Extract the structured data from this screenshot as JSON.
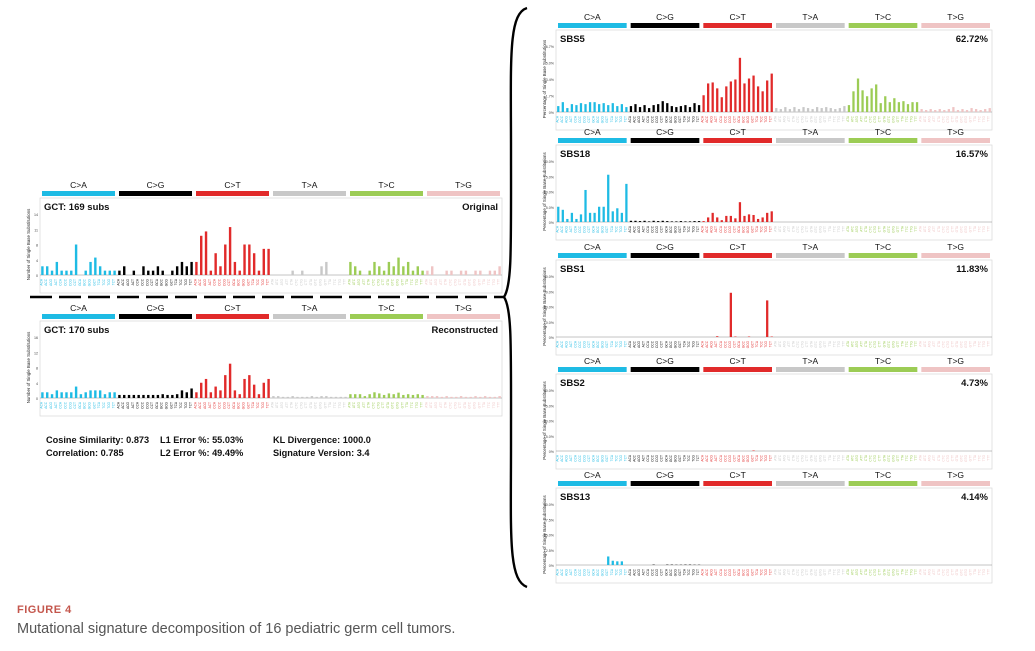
{
  "figure": {
    "label": "FIGURE 4",
    "caption": "Mutational signature decomposition of 16 pediatric germ cell tumors."
  },
  "mutation_types": [
    {
      "label": "C>A",
      "color": "#1ebbe4"
    },
    {
      "label": "C>G",
      "color": "#000000"
    },
    {
      "label": "C>T",
      "color": "#e12a2a"
    },
    {
      "label": "T>A",
      "color": "#c8c8c8"
    },
    {
      "label": "T>C",
      "color": "#9ccc55"
    },
    {
      "label": "T>G",
      "color": "#efc4c4"
    }
  ],
  "stats": [
    {
      "label": "Cosine Similarity: 0.873"
    },
    {
      "label": "Correlation: 0.785"
    },
    {
      "label": "L1 Error %: 55.03%"
    },
    {
      "label": "L2 Error %: 49.49%"
    },
    {
      "label": "KL Divergence: 1000.0"
    },
    {
      "label": "Signature Version: 3.4"
    }
  ],
  "chart_data": [
    {
      "type": "bar",
      "panel": "GCT original",
      "title": "GCT: 169 subs",
      "corner_label": "Original",
      "ylabel": "Number of Single Base Substitutions",
      "yticks": [
        "0",
        "4",
        "8",
        "11",
        "14"
      ],
      "ylim": [
        0,
        14
      ],
      "values": [
        2,
        2,
        1,
        3,
        1,
        1,
        1,
        7,
        0,
        1,
        3,
        4,
        2,
        1,
        1,
        1,
        1,
        2,
        0,
        1,
        0,
        2,
        1,
        1,
        2,
        1,
        0,
        1,
        2,
        3,
        2,
        3,
        3,
        9,
        10,
        1,
        5,
        2,
        7,
        11,
        3,
        1,
        7,
        7,
        5,
        1,
        6,
        6,
        0,
        0,
        0,
        0,
        1,
        0,
        1,
        0,
        0,
        0,
        2,
        3,
        0,
        0,
        0,
        0,
        3,
        2,
        1,
        0,
        1,
        3,
        2,
        1,
        3,
        2,
        4,
        2,
        3,
        1,
        2,
        1,
        1,
        2,
        0,
        0,
        1,
        1,
        0,
        1,
        1,
        0,
        1,
        1,
        0,
        1,
        1,
        2
      ]
    },
    {
      "type": "bar",
      "panel": "GCT reconstructed",
      "title": "GCT: 170 subs",
      "corner_label": "Reconstructed",
      "ylabel": "Number of Single Base Substitutions",
      "yticks": [
        "0",
        "4",
        "8",
        "12",
        "16"
      ],
      "ylim": [
        0,
        16
      ],
      "values": [
        1.5,
        1.5,
        1,
        2,
        1.5,
        1.5,
        1.5,
        3,
        1,
        1.5,
        2,
        2,
        2,
        1,
        1.5,
        1.5,
        0.8,
        0.8,
        0.8,
        0.8,
        0.8,
        0.8,
        0.8,
        0.8,
        0.8,
        1,
        0.8,
        0.8,
        1,
        2,
        1.5,
        2.5,
        1.5,
        4,
        5,
        1.5,
        3,
        2,
        6,
        9,
        2,
        1,
        5,
        6,
        3.5,
        1,
        4,
        5,
        0.5,
        0.5,
        0.3,
        0.3,
        0.5,
        0.3,
        0.3,
        0.3,
        0.5,
        0.3,
        0.5,
        0.5,
        0.3,
        0.3,
        0.3,
        0.3,
        1,
        1,
        1,
        0.5,
        1,
        1.5,
        1.2,
        0.8,
        1.2,
        1,
        1.4,
        0.8,
        1,
        0.8,
        1,
        0.8,
        0.5,
        0.5,
        0.5,
        0.3,
        0.5,
        0.3,
        0.3,
        0.5,
        0.3,
        0.3,
        0.5,
        0.3,
        0.5,
        0.3,
        0.3,
        0.5
      ]
    },
    {
      "type": "bar",
      "panel": "SBS5",
      "title": "SBS5",
      "corner_label": "62.72%",
      "ylabel": "Percentage of Single Base Substitutions",
      "yticks": [
        "0%",
        "1.7%",
        "3.4%",
        "5.0%",
        "6.7%"
      ],
      "ylim": [
        0,
        6.7
      ],
      "values": [
        0.6,
        1,
        0.4,
        0.8,
        0.7,
        0.9,
        0.8,
        1,
        1,
        0.8,
        0.9,
        0.7,
        0.9,
        0.6,
        0.8,
        0.5,
        0.6,
        0.8,
        0.5,
        0.7,
        0.4,
        0.7,
        0.8,
        1.1,
        0.9,
        0.6,
        0.5,
        0.6,
        0.7,
        0.5,
        0.9,
        0.7,
        1.7,
        2.9,
        3,
        2.4,
        1.5,
        2.6,
        3.1,
        3.3,
        5.5,
        2.9,
        3.4,
        3.7,
        2.6,
        2.1,
        3.2,
        3.9,
        0.4,
        0.3,
        0.5,
        0.3,
        0.5,
        0.3,
        0.5,
        0.4,
        0.3,
        0.5,
        0.4,
        0.5,
        0.4,
        0.3,
        0.4,
        0.6,
        0.7,
        2.1,
        3.4,
        2.2,
        1.6,
        2.4,
        2.8,
        0.9,
        1.6,
        1,
        1.4,
        1,
        1.1,
        0.8,
        1,
        1,
        0.3,
        0.2,
        0.3,
        0.2,
        0.3,
        0.2,
        0.3,
        0.5,
        0.2,
        0.3,
        0.2,
        0.4,
        0.3,
        0.2,
        0.3,
        0.4
      ]
    },
    {
      "type": "bar",
      "panel": "SBS18",
      "title": "SBS18",
      "corner_label": "16.57%",
      "ylabel": "Percentage of Single Base Substitutions",
      "yticks": [
        "0%",
        "5.0%",
        "10.0%",
        "15.0%",
        "20.0%"
      ],
      "ylim": [
        0,
        20
      ],
      "values": [
        5,
        4,
        1,
        3,
        1,
        2.5,
        10.5,
        3,
        3,
        5,
        5,
        15.5,
        3.5,
        4.5,
        3,
        12.5,
        0.4,
        0.4,
        0.3,
        0.4,
        0.2,
        0.4,
        0.3,
        0.4,
        0.3,
        0.2,
        0.2,
        0.3,
        0.2,
        0.2,
        0.3,
        0.3,
        0.3,
        1.5,
        3,
        1.5,
        0.6,
        2,
        2,
        1.2,
        6.5,
        2,
        2.5,
        2.3,
        1,
        1.5,
        3,
        3.5,
        0,
        0,
        0,
        0,
        0,
        0,
        0,
        0,
        0,
        0,
        0,
        0,
        0,
        0,
        0,
        0,
        0,
        0,
        0,
        0,
        0,
        0,
        0,
        0,
        0,
        0,
        0,
        0,
        0,
        0,
        0,
        0,
        0,
        0,
        0,
        0,
        0,
        0,
        0,
        0,
        0,
        0,
        0,
        0,
        0,
        0,
        0,
        0
      ]
    },
    {
      "type": "bar",
      "panel": "SBS1",
      "title": "SBS1",
      "corner_label": "11.83%",
      "ylabel": "Percentage of Single Base Substitutions",
      "yticks": [
        "0%",
        "10.0%",
        "20.0%",
        "30.0%",
        "40.0%"
      ],
      "ylim": [
        0,
        40
      ],
      "values": [
        0,
        0,
        0,
        0,
        0,
        0,
        0,
        0,
        0,
        0,
        0,
        0,
        0,
        0,
        0,
        0,
        0,
        0,
        0,
        0,
        0,
        0,
        0,
        0,
        0,
        0,
        0,
        0,
        0,
        0,
        0,
        0,
        0,
        0,
        0,
        0.5,
        0,
        0,
        29,
        0.3,
        0,
        0,
        0.3,
        0,
        0,
        0,
        24,
        0.3,
        0,
        0,
        0,
        0,
        0,
        0,
        0,
        0,
        0,
        0,
        0,
        0,
        0,
        0,
        0,
        0,
        0,
        0,
        0,
        0,
        0,
        0,
        0,
        0,
        0,
        0,
        0,
        0,
        0,
        0,
        0,
        0,
        0,
        0,
        0,
        0,
        0,
        0,
        0,
        0,
        0,
        0,
        0,
        0,
        0,
        0,
        0,
        0
      ]
    },
    {
      "type": "bar",
      "panel": "SBS2",
      "title": "SBS2",
      "corner_label": "4.73%",
      "ylabel": "Percentage of Single Base Substitutions",
      "yticks": [
        "0%",
        "15.0%",
        "30.0%",
        "45.0%",
        "60.0%"
      ],
      "ylim": [
        0,
        60
      ],
      "values": [
        0,
        0,
        0,
        0,
        0,
        0,
        0,
        0,
        0,
        0,
        0,
        0,
        0,
        0,
        0,
        0,
        0,
        0,
        0,
        0,
        0,
        0,
        0,
        0,
        0,
        0,
        0,
        0,
        0,
        0,
        0,
        0,
        0,
        0,
        0,
        0,
        0,
        0,
        0,
        0,
        0,
        0,
        0,
        0.5,
        0,
        0,
        0,
        0,
        0,
        0,
        0,
        0,
        0,
        0,
        0,
        0,
        0,
        0,
        0,
        0,
        0,
        0,
        0,
        0,
        0,
        0,
        0,
        0,
        0,
        0,
        0,
        0,
        0,
        0,
        0,
        0,
        0,
        0,
        0,
        0,
        0,
        0,
        0,
        0,
        0,
        0,
        0,
        0,
        0,
        0,
        0,
        0,
        0,
        0,
        0,
        0
      ]
    },
    {
      "type": "bar",
      "panel": "SBS13",
      "title": "SBS13",
      "corner_label": "4.14%",
      "ylabel": "Percentage of Single Base Substitutions",
      "yticks": [
        "0%",
        "12.5%",
        "25.0%",
        "37.5%",
        "50.0%"
      ],
      "ylim": [
        0,
        50
      ],
      "values": [
        0,
        0,
        0,
        0,
        0,
        0,
        0,
        0,
        0,
        0,
        0,
        7,
        3.5,
        3,
        3,
        0,
        0,
        0,
        0,
        0,
        0,
        0.3,
        0,
        0,
        0.3,
        0.3,
        0.2,
        0.2,
        0.3,
        0.3,
        0.2,
        0.2,
        0,
        0,
        0,
        0,
        0,
        0,
        0,
        0,
        0,
        0,
        0,
        0,
        0,
        0,
        0,
        0,
        0,
        0,
        0,
        0,
        0,
        0,
        0,
        0,
        0,
        0,
        0,
        0,
        0,
        0,
        0,
        0,
        0,
        0,
        0,
        0,
        0,
        0,
        0,
        0,
        0,
        0,
        0,
        0,
        0,
        0,
        0,
        0,
        0,
        0,
        0,
        0,
        0,
        0,
        0,
        0,
        0,
        0,
        0,
        0,
        0,
        0,
        0,
        0
      ]
    }
  ]
}
